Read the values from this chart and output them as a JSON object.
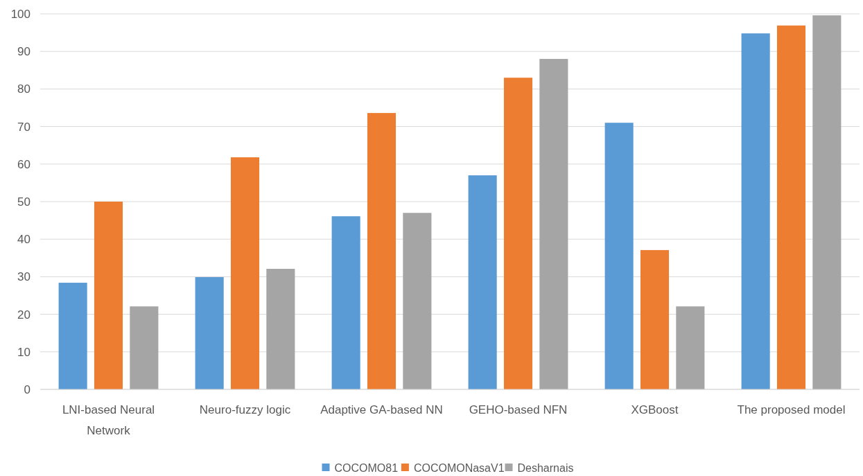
{
  "chart_data": {
    "type": "bar",
    "categories": [
      "LNI-based Neural Network",
      "Neuro-fuzzy logic",
      "Adaptive GA-based NN",
      "GEHO-based NFN",
      "XGBoost",
      "The proposed model"
    ],
    "series": [
      {
        "name": "COCOMO81",
        "color": "#5b9bd5",
        "values": [
          28.4,
          29.9,
          46.1,
          57.0,
          71.0,
          94.8
        ]
      },
      {
        "name": "COCOMONasaV1",
        "color": "#ed7d31",
        "values": [
          50.0,
          61.8,
          73.6,
          83.0,
          37.1,
          96.9
        ]
      },
      {
        "name": "Desharnais",
        "color": "#a5a5a5",
        "values": [
          22.1,
          32.1,
          47.0,
          88.0,
          22.1,
          99.6
        ]
      }
    ],
    "ylim": [
      0,
      100
    ],
    "yticks": [
      0,
      10,
      20,
      30,
      40,
      50,
      60,
      70,
      80,
      90,
      100
    ],
    "grid": "y",
    "legend": "bottom"
  }
}
